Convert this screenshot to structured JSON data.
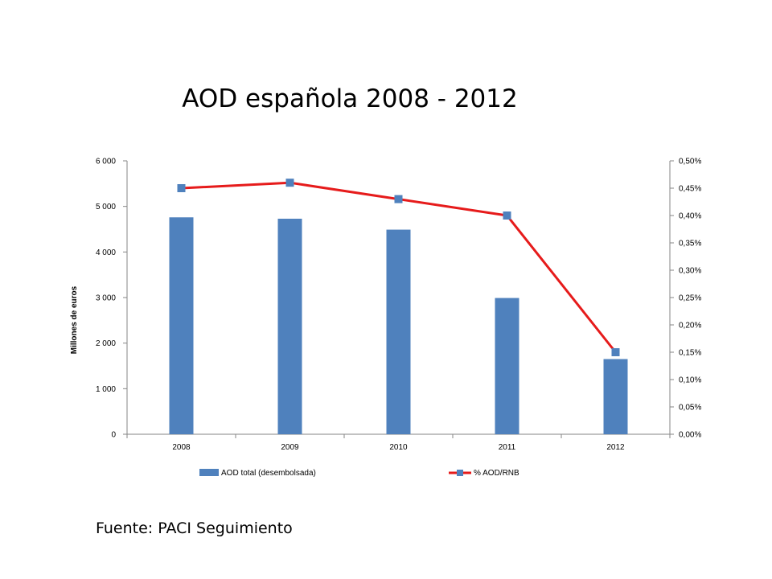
{
  "slide": {
    "title": "AOD española 2008 - 2012",
    "source": "Fuente: PACI Seguimiento"
  },
  "chart_data": {
    "type": "bar",
    "categories": [
      "2008",
      "2009",
      "2010",
      "2011",
      "2012"
    ],
    "series": [
      {
        "name": "AOD total (desembolsada)",
        "type": "bar",
        "axis": "left",
        "color": "#4f81bd",
        "values": [
          4760,
          4730,
          4490,
          2990,
          1650
        ]
      },
      {
        "name": "% AOD/RNB",
        "type": "line",
        "axis": "right",
        "color": "#e61b1b",
        "marker_color": "#4f81bd",
        "values": [
          0.45,
          0.46,
          0.43,
          0.4,
          0.15
        ]
      }
    ],
    "ylabel": "Millones de euros",
    "ylim": [
      0,
      6000
    ],
    "y_ticks": [
      "0",
      "1 000",
      "2 000",
      "3 000",
      "4 000",
      "5 000",
      "6 000"
    ],
    "y2lim": [
      0,
      0.5
    ],
    "y2_ticks": [
      "0,00%",
      "0,05%",
      "0,10%",
      "0,15%",
      "0,20%",
      "0,25%",
      "0,30%",
      "0,35%",
      "0,40%",
      "0,45%",
      "0,50%"
    ],
    "grid": false,
    "legend": "bottom"
  }
}
